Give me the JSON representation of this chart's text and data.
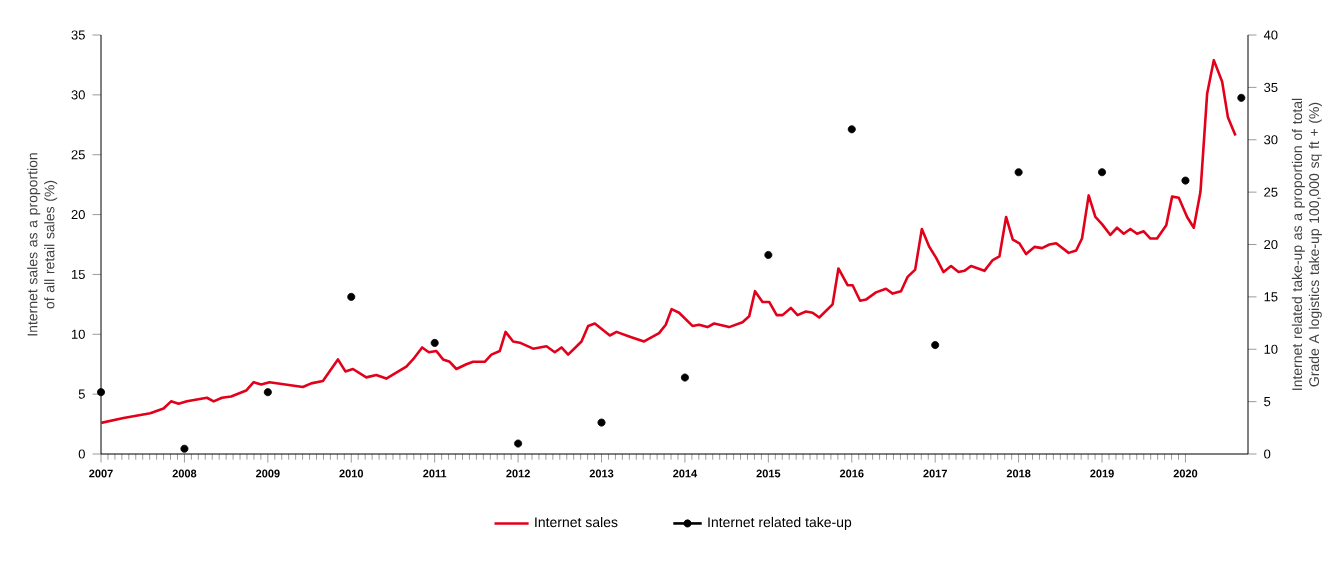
{
  "chart_data": {
    "type": "line",
    "ylabel": "Internet sales as a proportion of all retail sales (%)",
    "y2label": "Internet related take-up as a proportion of total Grade A logistics take-up 100,000 sq ft + (%)",
    "xlim": [
      2007,
      2020.75
    ],
    "xticks": [
      2007,
      2008,
      2009,
      2010,
      2011,
      2012,
      2013,
      2014,
      2015,
      2016,
      2017,
      2018,
      2019,
      2020
    ],
    "ylim": [
      0,
      35
    ],
    "yticks": [
      0,
      5,
      10,
      15,
      20,
      25,
      30,
      35
    ],
    "y2lim": [
      0,
      40
    ],
    "y2ticks": [
      0,
      5,
      10,
      15,
      20,
      25,
      30,
      35,
      40
    ],
    "legend": "bottom",
    "grid": false,
    "series": [
      {
        "name": "Internet sales",
        "color": "#e3001b",
        "x": [
          2007.0,
          2007.27,
          2007.59,
          2007.75,
          2007.84,
          2007.93,
          2008.03,
          2008.27,
          2008.35,
          2008.45,
          2008.56,
          2008.74,
          2008.83,
          2008.92,
          2009.02,
          2009.42,
          2009.52,
          2009.66,
          2009.84,
          2009.93,
          2010.02,
          2010.18,
          2010.3,
          2010.42,
          2010.66,
          2010.74,
          2010.85,
          2010.93,
          2011.02,
          2011.1,
          2011.18,
          2011.26,
          2011.38,
          2011.46,
          2011.6,
          2011.68,
          2011.78,
          2011.85,
          2011.94,
          2012.02,
          2012.18,
          2012.34,
          2012.44,
          2012.52,
          2012.6,
          2012.76,
          2012.84,
          2012.92,
          2013.1,
          2013.18,
          2013.34,
          2013.51,
          2013.69,
          2013.77,
          2013.84,
          2013.93,
          2014.09,
          2014.17,
          2014.27,
          2014.35,
          2014.53,
          2014.69,
          2014.77,
          2014.84,
          2014.93,
          2015.01,
          2015.1,
          2015.17,
          2015.27,
          2015.35,
          2015.45,
          2015.53,
          2015.61,
          2015.77,
          2015.84,
          2015.95,
          2016.01,
          2016.1,
          2016.17,
          2016.29,
          2016.41,
          2016.49,
          2016.59,
          2016.67,
          2016.76,
          2016.84,
          2016.93,
          2017.01,
          2017.1,
          2017.19,
          2017.28,
          2017.35,
          2017.43,
          2017.59,
          2017.69,
          2017.77,
          2017.85,
          2017.93,
          2018.01,
          2018.09,
          2018.19,
          2018.28,
          2018.37,
          2018.45,
          2018.6,
          2018.69,
          2018.76,
          2018.84,
          2018.92,
          2019.0,
          2019.1,
          2019.18,
          2019.26,
          2019.34,
          2019.42,
          2019.5,
          2019.58,
          2019.66,
          2019.77,
          2019.84,
          2019.92,
          2020.02,
          2020.1,
          2020.18,
          2020.26,
          2020.34,
          2020.44,
          2020.51,
          2020.6
        ],
        "values": [
          2.6,
          3.0,
          3.4,
          3.8,
          4.4,
          4.2,
          4.4,
          4.7,
          4.4,
          4.7,
          4.8,
          5.3,
          6.0,
          5.8,
          6.0,
          5.6,
          5.9,
          6.1,
          7.9,
          6.9,
          7.1,
          6.4,
          6.6,
          6.3,
          7.3,
          7.9,
          8.9,
          8.5,
          8.6,
          7.9,
          7.7,
          7.1,
          7.5,
          7.7,
          7.7,
          8.3,
          8.6,
          10.2,
          9.4,
          9.3,
          8.8,
          9.0,
          8.5,
          8.9,
          8.3,
          9.4,
          10.7,
          10.9,
          9.9,
          10.2,
          9.8,
          9.4,
          10.1,
          10.8,
          12.1,
          11.8,
          10.7,
          10.8,
          10.6,
          10.9,
          10.6,
          11.0,
          11.5,
          13.6,
          12.7,
          12.7,
          11.6,
          11.6,
          12.2,
          11.6,
          11.9,
          11.8,
          11.4,
          12.5,
          15.5,
          14.1,
          14.1,
          12.8,
          12.9,
          13.5,
          13.8,
          13.4,
          13.6,
          14.8,
          15.4,
          18.8,
          17.3,
          16.4,
          15.2,
          15.7,
          15.2,
          15.3,
          15.7,
          15.3,
          16.2,
          16.5,
          19.8,
          17.9,
          17.6,
          16.7,
          17.3,
          17.2,
          17.5,
          17.6,
          16.8,
          17.0,
          18.0,
          21.6,
          19.8,
          19.2,
          18.3,
          18.9,
          18.4,
          18.8,
          18.4,
          18.6,
          18.0,
          18.0,
          19.1,
          21.5,
          21.4,
          19.8,
          18.9,
          21.9,
          30.1,
          32.9,
          31.1,
          28.1,
          26.6
        ]
      },
      {
        "name": "Internet related take-up",
        "type": "scatter",
        "axis": "y2",
        "color": "#000000",
        "x": [
          2007,
          2008,
          2009,
          2010,
          2011,
          2012,
          2013,
          2014,
          2015,
          2016,
          2017,
          2018,
          2019,
          2020,
          2020.67
        ],
        "values": [
          5.9,
          0.5,
          5.9,
          15.0,
          10.6,
          1.0,
          3.0,
          7.3,
          19.0,
          31.0,
          10.4,
          26.9,
          26.9,
          26.1,
          34.0
        ]
      }
    ]
  }
}
